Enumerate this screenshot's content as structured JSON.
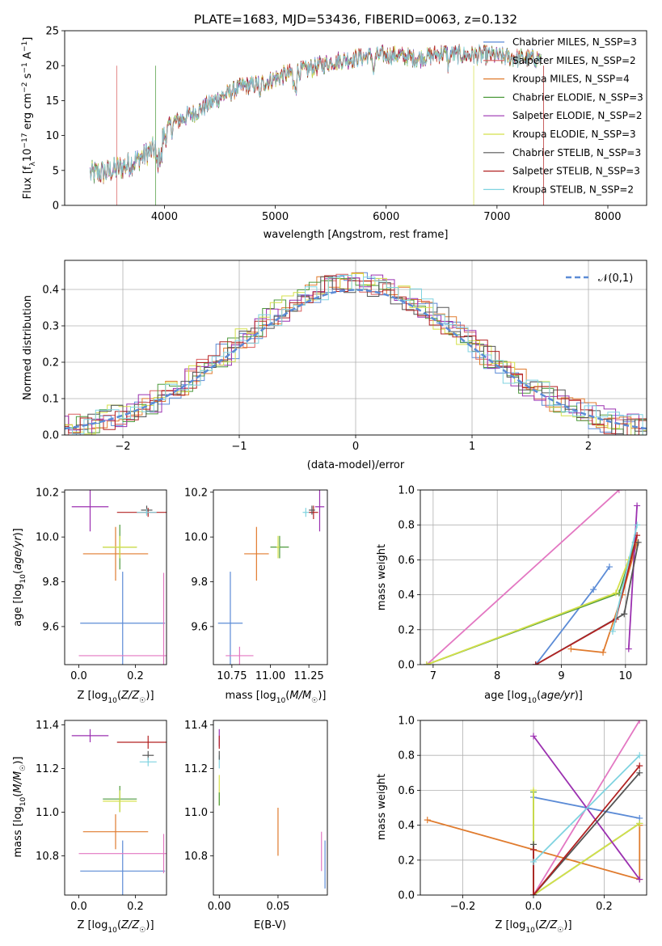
{
  "chart_data": [
    {
      "id": "spectrum",
      "type": "line",
      "title": "PLATE=1683, MJD=53436, FIBERID=0063, z=0.132",
      "xlabel": "wavelength [Angstrom, rest frame]",
      "ylabel": "Flux [f_λ 10^-17 erg cm^-2 s^-1 A^-1]",
      "xlim": [
        3100,
        8350
      ],
      "ylim": [
        0,
        25
      ],
      "xticks": [
        4000,
        5000,
        6000,
        7000,
        8000
      ],
      "yticks": [
        0,
        5,
        10,
        15,
        20,
        25
      ],
      "grid": false,
      "legend_position": "right",
      "legend": [
        {
          "label": "Chabrier MILES, N_SSP=3",
          "color": "#5b8bd6"
        },
        {
          "label": "Salpeter MILES, N_SSP=2",
          "color": "#d95f5f"
        },
        {
          "label": "Kroupa MILES, N_SSP=4",
          "color": "#e07b2e"
        },
        {
          "label": "Chabrier ELODIE, N_SSP=3",
          "color": "#4d9a3c"
        },
        {
          "label": "Salpeter ELODIE, N_SSP=2",
          "color": "#9b30b0"
        },
        {
          "label": "Kroupa ELODIE, N_SSP=3",
          "color": "#d4e04a"
        },
        {
          "label": "Chabrier STELIB, N_SSP=3",
          "color": "#555555"
        },
        {
          "label": "Salpeter STELIB, N_SSP=3",
          "color": "#b22222"
        },
        {
          "label": "Kroupa STELIB, N_SSP=2",
          "color": "#7fd3e0"
        }
      ],
      "continuum_anchors": {
        "x": [
          3330,
          3500,
          3700,
          3900,
          4100,
          4300,
          4500,
          4700,
          4900,
          5100,
          5300,
          5500,
          5700,
          5900,
          6100,
          6300,
          6500,
          6700,
          6900,
          7100,
          7300,
          7400
        ],
        "y": [
          4.5,
          4.8,
          6.0,
          8.0,
          12.0,
          13.5,
          15.5,
          17.0,
          17.5,
          18.8,
          19.5,
          20.5,
          21.0,
          21.5,
          21.5,
          21.0,
          21.8,
          21.5,
          21.5,
          21.2,
          21.0,
          21.0
        ]
      },
      "cutoffs": [
        {
          "x": 3570,
          "color": "#d95f5f"
        },
        {
          "x": 3920,
          "color": "#4d9a3c"
        },
        {
          "x": 6790,
          "color": "#d4e04a"
        },
        {
          "x": 7420,
          "color": "#b22222"
        }
      ]
    },
    {
      "id": "residuals",
      "type": "histogram",
      "xlabel": "(data-model)/error",
      "ylabel": "Normed distribution",
      "xlim": [
        -2.5,
        2.5
      ],
      "ylim": [
        0,
        0.48
      ],
      "xticks": [
        -2,
        -1,
        0,
        1,
        2
      ],
      "yticks": [
        0.0,
        0.1,
        0.2,
        0.3,
        0.4
      ],
      "grid": true,
      "legend_position": "top-right",
      "reference_curve": {
        "label": "𝒩(0,1)",
        "mean": 0,
        "sigma": 1,
        "color": "#5b8bd6"
      }
    },
    {
      "id": "age_vs_Z",
      "type": "errorbar",
      "xlabel": "Z [log10(Z/Z☉)]",
      "ylabel": "age [log10(age/yr)]",
      "xlim": [
        -0.05,
        0.31
      ],
      "ylim": [
        9.43,
        10.21
      ],
      "xticks": [
        0.0,
        0.2
      ],
      "yticks": [
        9.6,
        9.8,
        10.0,
        10.2
      ],
      "grid": false,
      "points": [
        {
          "color": "#5b8bd6",
          "x": 0.155,
          "y": 9.615,
          "xerr": 0.15,
          "yerr": 0.23
        },
        {
          "color": "#e07b2e",
          "x": 0.13,
          "y": 9.925,
          "xerr": 0.115,
          "yerr": 0.12
        },
        {
          "color": "#4d9a3c",
          "x": 0.145,
          "y": 9.955,
          "xerr": 0.06,
          "yerr": 0.1
        },
        {
          "color": "#d4e04a",
          "x": 0.145,
          "y": 9.955,
          "xerr": 0.06,
          "yerr": 0.05
        },
        {
          "color": "#9b30b0",
          "x": 0.04,
          "y": 10.135,
          "xerr": 0.065,
          "yerr": 0.11
        },
        {
          "color": "#b22222",
          "x": 0.245,
          "y": 10.11,
          "xerr": 0.11,
          "yerr": 0.02
        },
        {
          "color": "#555555",
          "x": 0.24,
          "y": 10.12,
          "xerr": 0.02,
          "yerr": 0.02
        },
        {
          "color": "#7fd3e0",
          "x": 0.24,
          "y": 10.11,
          "xerr": 0.035,
          "yerr": 0.015
        },
        {
          "color": "#e377c2",
          "x": 0.3,
          "y": 9.47,
          "xerr": 0.3,
          "yerr": 0.37
        }
      ]
    },
    {
      "id": "age_vs_mass",
      "type": "errorbar",
      "xlabel": "mass [log10(M/M☉)]",
      "ylabel": "",
      "xlim": [
        10.63,
        11.37
      ],
      "ylim": [
        9.43,
        10.21
      ],
      "xticks": [
        10.75,
        11.0,
        11.25
      ],
      "yticks": [
        9.6,
        9.8,
        10.0,
        10.2
      ],
      "grid": false,
      "points": [
        {
          "color": "#5b8bd6",
          "x": 10.74,
          "y": 9.615,
          "xerr": 0.08,
          "yerr": 0.23
        },
        {
          "color": "#e07b2e",
          "x": 10.91,
          "y": 9.925,
          "xerr": 0.08,
          "yerr": 0.12
        },
        {
          "color": "#4d9a3c",
          "x": 11.06,
          "y": 9.955,
          "xerr": 0.06,
          "yerr": 0.05
        },
        {
          "color": "#d4e04a",
          "x": 11.05,
          "y": 9.955,
          "xerr": 0.01,
          "yerr": 0.05
        },
        {
          "color": "#9b30b0",
          "x": 11.32,
          "y": 10.135,
          "xerr": 0.03,
          "yerr": 0.11
        },
        {
          "color": "#b22222",
          "x": 11.28,
          "y": 10.11,
          "xerr": 0.03,
          "yerr": 0.03
        },
        {
          "color": "#555555",
          "x": 11.27,
          "y": 10.12,
          "xerr": 0.02,
          "yerr": 0.02
        },
        {
          "color": "#7fd3e0",
          "x": 11.23,
          "y": 10.11,
          "xerr": 0.02,
          "yerr": 0.02
        },
        {
          "color": "#e377c2",
          "x": 10.8,
          "y": 9.47,
          "xerr": 0.09,
          "yerr": 0.04
        }
      ]
    },
    {
      "id": "massweight_vs_age",
      "type": "line",
      "xlabel": "age [log10(age/yr)]",
      "ylabel": "mass weight",
      "xlim": [
        6.8,
        10.33
      ],
      "ylim": [
        0,
        1
      ],
      "xticks": [
        7,
        8,
        9,
        10
      ],
      "yticks": [
        0.0,
        0.2,
        0.4,
        0.6,
        0.8,
        1.0
      ],
      "grid": true,
      "series": [
        {
          "color": "#e377c2",
          "x": [
            6.9,
            9.9
          ],
          "y": [
            0.0,
            1.0
          ]
        },
        {
          "color": "#5b8bd6",
          "x": [
            8.6,
            9.5,
            9.75
          ],
          "y": [
            0.0,
            0.43,
            0.56
          ]
        },
        {
          "color": "#e07b2e",
          "x": [
            9.15,
            9.65,
            9.95,
            10.18
          ],
          "y": [
            0.09,
            0.07,
            0.4,
            0.7
          ]
        },
        {
          "color": "#4d9a3c",
          "x": [
            6.9,
            9.9,
            10.15
          ],
          "y": [
            0.0,
            0.41,
            0.7
          ]
        },
        {
          "color": "#d4e04a",
          "x": [
            6.9,
            9.85,
            10.05
          ],
          "y": [
            0.0,
            0.41,
            0.6
          ]
        },
        {
          "color": "#9b30b0",
          "x": [
            10.05,
            10.18
          ],
          "y": [
            0.09,
            0.91
          ]
        },
        {
          "color": "#555555",
          "x": [
            8.6,
            9.98,
            10.2
          ],
          "y": [
            0.0,
            0.29,
            0.7
          ]
        },
        {
          "color": "#b22222",
          "x": [
            8.6,
            9.85,
            10.18
          ],
          "y": [
            0.0,
            0.26,
            0.74
          ]
        },
        {
          "color": "#7fd3e0",
          "x": [
            9.8,
            10.18
          ],
          "y": [
            0.19,
            0.8
          ]
        }
      ]
    },
    {
      "id": "mass_vs_Z",
      "type": "errorbar",
      "xlabel": "Z [log10(Z/Z☉)]",
      "ylabel": "mass [log10(M/M☉)]",
      "xlim": [
        -0.05,
        0.31
      ],
      "ylim": [
        10.62,
        11.42
      ],
      "xticks": [
        0.0,
        0.2
      ],
      "yticks": [
        10.8,
        11.0,
        11.2,
        11.4
      ],
      "grid": false,
      "points": [
        {
          "color": "#5b8bd6",
          "x": 0.155,
          "y": 10.73,
          "xerr": 0.15,
          "yerr": 0.14
        },
        {
          "color": "#e07b2e",
          "x": 0.13,
          "y": 10.91,
          "xerr": 0.115,
          "yerr": 0.08
        },
        {
          "color": "#4d9a3c",
          "x": 0.145,
          "y": 11.06,
          "xerr": 0.06,
          "yerr": 0.06
        },
        {
          "color": "#d4e04a",
          "x": 0.145,
          "y": 11.05,
          "xerr": 0.06,
          "yerr": 0.05
        },
        {
          "color": "#9b30b0",
          "x": 0.04,
          "y": 11.35,
          "xerr": 0.065,
          "yerr": 0.03
        },
        {
          "color": "#b22222",
          "x": 0.245,
          "y": 11.32,
          "xerr": 0.11,
          "yerr": 0.03
        },
        {
          "color": "#555555",
          "x": 0.245,
          "y": 11.26,
          "xerr": 0.02,
          "yerr": 0.02
        },
        {
          "color": "#7fd3e0",
          "x": 0.245,
          "y": 11.23,
          "xerr": 0.03,
          "yerr": 0.02
        },
        {
          "color": "#e377c2",
          "x": 0.3,
          "y": 10.81,
          "xerr": 0.3,
          "yerr": 0.09
        }
      ]
    },
    {
      "id": "mass_vs_EBV",
      "type": "errorbar",
      "xlabel": "E(B-V)",
      "ylabel": "",
      "xlim": [
        -0.005,
        0.092
      ],
      "ylim": [
        10.62,
        11.42
      ],
      "xticks": [
        0.0,
        0.05
      ],
      "yticks": [
        10.8,
        11.0,
        11.2,
        11.4
      ],
      "grid": false,
      "points": [
        {
          "color": "#5b8bd6",
          "x": 0.09,
          "y": 10.76,
          "xerr": 0.0,
          "yerr": 0.11
        },
        {
          "color": "#e07b2e",
          "x": 0.05,
          "y": 10.91,
          "xerr": 0.0,
          "yerr": 0.11
        },
        {
          "color": "#e377c2",
          "x": 0.087,
          "y": 10.82,
          "xerr": 0.0,
          "yerr": 0.09
        },
        {
          "color": "#d4e04a",
          "x": 0.0,
          "y": 11.1,
          "xerr": 0.0,
          "yerr": 0.07
        },
        {
          "color": "#9b30b0",
          "x": 0.0,
          "y": 11.34,
          "xerr": 0.0,
          "yerr": 0.04
        },
        {
          "color": "#b22222",
          "x": 0.0,
          "y": 11.32,
          "xerr": 0.0,
          "yerr": 0.03
        },
        {
          "color": "#7fd3e0",
          "x": 0.0,
          "y": 11.23,
          "xerr": 0.0,
          "yerr": 0.03
        },
        {
          "color": "#555555",
          "x": 0.0,
          "y": 11.26,
          "xerr": 0.0,
          "yerr": 0.02
        },
        {
          "color": "#4d9a3c",
          "x": 0.0,
          "y": 11.06,
          "xerr": 0.0,
          "yerr": 0.03
        }
      ]
    },
    {
      "id": "massweight_vs_Z",
      "type": "line",
      "xlabel": "Z [log10(Z/Z☉)]",
      "ylabel": "mass weight",
      "xlim": [
        -0.32,
        0.32
      ],
      "ylim": [
        0,
        1
      ],
      "xticks": [
        -0.2,
        0.0,
        0.2
      ],
      "yticks": [
        0.0,
        0.2,
        0.4,
        0.6,
        0.8,
        1.0
      ],
      "grid": true,
      "series": [
        {
          "color": "#e377c2",
          "x": [
            0.0,
            0.3
          ],
          "y": [
            0.0,
            1.0
          ]
        },
        {
          "color": "#5b8bd6",
          "x": [
            0.0,
            0.0,
            0.3
          ],
          "y": [
            0.0,
            0.56,
            0.44
          ]
        },
        {
          "color": "#e07b2e",
          "x": [
            -0.3,
            0.3,
            0.3
          ],
          "y": [
            0.43,
            0.09,
            0.4
          ]
        },
        {
          "color": "#4d9a3c",
          "x": [
            0.0,
            0.0,
            0.3
          ],
          "y": [
            0.59,
            0.0,
            0.41
          ]
        },
        {
          "color": "#d4e04a",
          "x": [
            0.0,
            0.0,
            0.3
          ],
          "y": [
            0.6,
            0.0,
            0.41
          ]
        },
        {
          "color": "#9b30b0",
          "x": [
            0.0,
            0.3
          ],
          "y": [
            0.91,
            0.09
          ]
        },
        {
          "color": "#555555",
          "x": [
            0.0,
            0.0,
            0.3
          ],
          "y": [
            0.29,
            0.0,
            0.7
          ]
        },
        {
          "color": "#b22222",
          "x": [
            0.0,
            0.0,
            0.3
          ],
          "y": [
            0.26,
            0.0,
            0.74
          ]
        },
        {
          "color": "#7fd3e0",
          "x": [
            0.0,
            0.3
          ],
          "y": [
            0.19,
            0.8
          ]
        }
      ]
    }
  ]
}
